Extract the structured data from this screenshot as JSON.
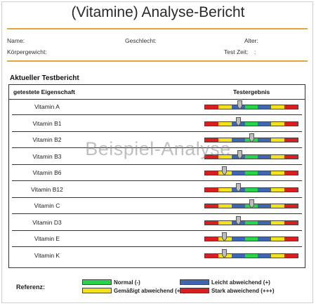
{
  "report": {
    "title": "(Vitamine) Analyse-Bericht",
    "fields": {
      "name_label": "Name:",
      "gender_label": "Geschlecht:",
      "age_label": "Alter:",
      "weight_label": "Körpergewicht:",
      "test_time_label": "Test Zeit:",
      "test_time_value": ":"
    },
    "section_title": "Aktueller Testbericht",
    "table": {
      "col_property": "getestete Eigenschaft",
      "col_result": "Testergebnis",
      "rows": [
        {
          "label": "Vitamin A",
          "position": 0.38
        },
        {
          "label": "Vitamin B1",
          "position": 0.36
        },
        {
          "label": "Vitamin B2",
          "position": 0.5
        },
        {
          "label": "Vitamin B3",
          "position": 0.38
        },
        {
          "label": "Vitamin B6",
          "position": 0.21
        },
        {
          "label": "Vitamin B12",
          "position": 0.36
        },
        {
          "label": "Vitamin C",
          "position": 0.5
        },
        {
          "label": "Vitamin D3",
          "position": 0.36
        },
        {
          "label": "Vitamin E",
          "position": 0.21
        },
        {
          "label": "Vitamin K",
          "position": 0.21
        }
      ]
    },
    "scale_segments": [
      {
        "color": "#d81e1e",
        "weight": 1
      },
      {
        "color": "#f4e31c",
        "weight": 1
      },
      {
        "color": "#3e67b0",
        "weight": 1
      },
      {
        "color": "#27d44c",
        "weight": 1
      },
      {
        "color": "#3e67b0",
        "weight": 1
      },
      {
        "color": "#f4e31c",
        "weight": 1
      },
      {
        "color": "#d81e1e",
        "weight": 1
      }
    ],
    "watermark": "Beispiel-Analyse",
    "legend": {
      "label": "Referenz:",
      "items": [
        {
          "text": "Normal (-)",
          "color": "#27d44c"
        },
        {
          "text": "Leicht abweichend (+)",
          "color": "#3e67b0"
        },
        {
          "text": "Gemäßigt abweichend (++)",
          "color": "#f4e31c"
        },
        {
          "text": "Stark abweichend (+++)",
          "color": "#d81e1e"
        }
      ]
    }
  }
}
